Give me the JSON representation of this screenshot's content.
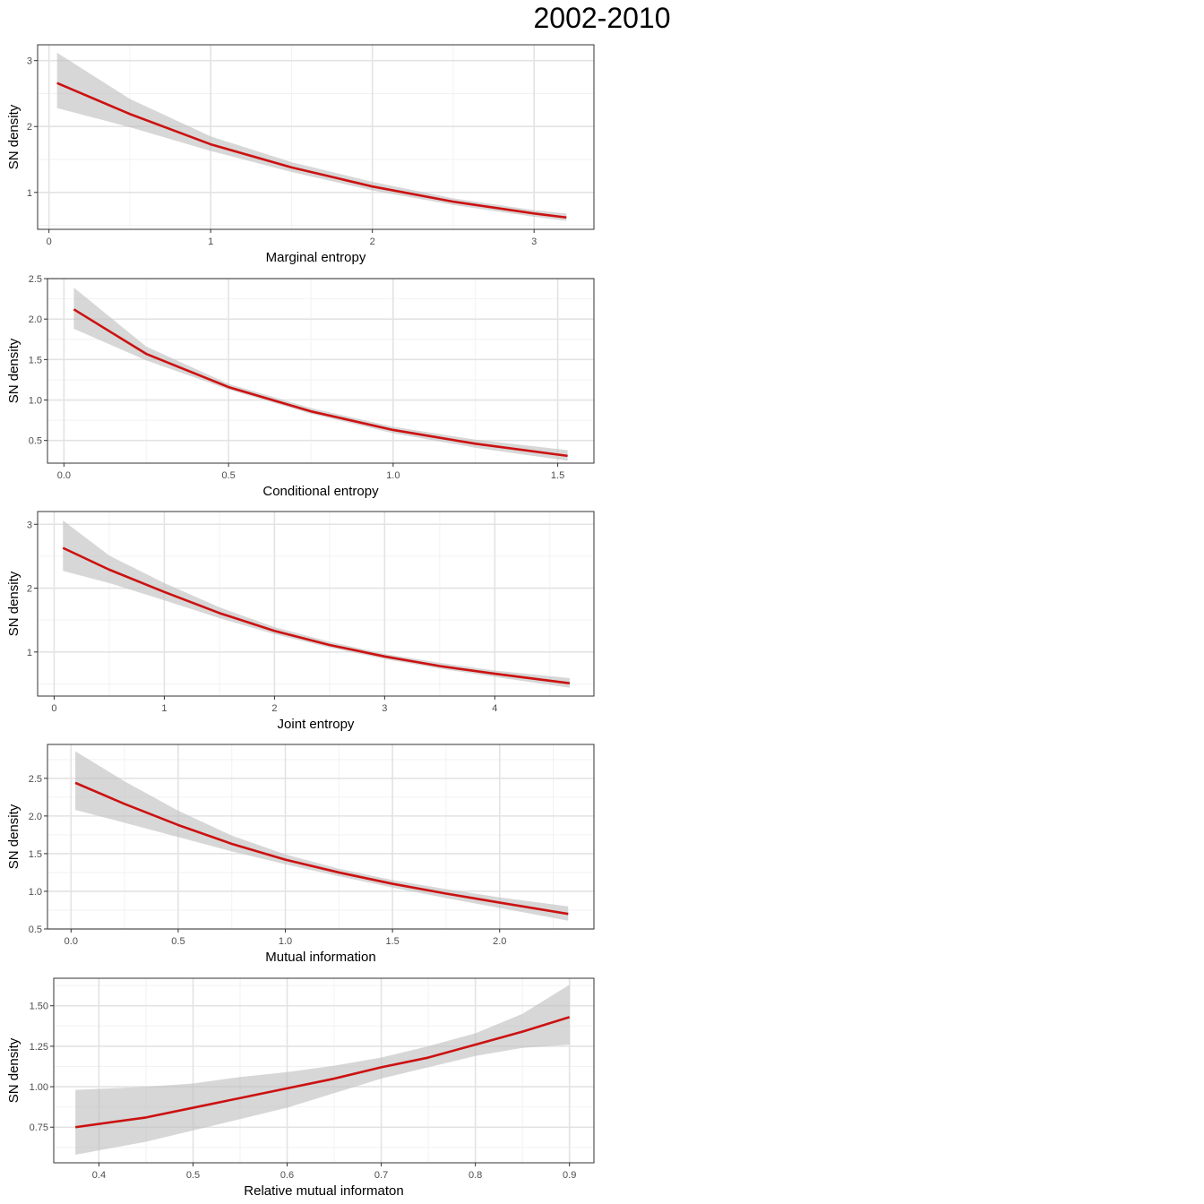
{
  "title": "2002-2010",
  "style": {
    "line_color": "#cc1111",
    "band_color": "#bebebe",
    "panel_border": "#333333",
    "grid_major": "#e3e3e3",
    "grid_minor": "#f2f2f2"
  },
  "chart_data": [
    {
      "type": "line",
      "xlabel": "Marginal entropy",
      "ylabel": "SN density",
      "xlim": [
        -0.07,
        3.37
      ],
      "ylim": [
        0.44,
        3.24
      ],
      "xticks": [
        0,
        1,
        2,
        3
      ],
      "xtick_labels": [
        "0",
        "1",
        "2",
        "3"
      ],
      "xminor": [
        0.5,
        1.5,
        2.5
      ],
      "yticks": [
        1,
        2,
        3
      ],
      "ytick_labels": [
        "1",
        "2",
        "3"
      ],
      "yminor": [
        0.5,
        1.5,
        2.5
      ],
      "series": [
        {
          "x": [
            0.05,
            0.5,
            1.0,
            1.5,
            2.0,
            2.5,
            3.0,
            3.2
          ],
          "y": [
            2.66,
            2.19,
            1.73,
            1.38,
            1.09,
            0.86,
            0.68,
            0.62
          ],
          "lower": [
            2.28,
            1.99,
            1.63,
            1.31,
            1.03,
            0.81,
            0.63,
            0.57
          ],
          "upper": [
            3.12,
            2.42,
            1.85,
            1.46,
            1.16,
            0.91,
            0.73,
            0.68
          ]
        }
      ]
    },
    {
      "type": "line",
      "xlabel": "Conditional entropy",
      "ylabel": "SN density",
      "xlim": [
        -0.05,
        1.61
      ],
      "ylim": [
        0.22,
        2.5
      ],
      "xticks": [
        0.0,
        0.5,
        1.0,
        1.5
      ],
      "xtick_labels": [
        "0.0",
        "0.5",
        "1.0",
        "1.5"
      ],
      "xminor": [
        0.25,
        0.75,
        1.25
      ],
      "yticks": [
        0.5,
        1.0,
        1.5,
        2.0,
        2.5
      ],
      "ytick_labels": [
        "0.5",
        "1.0",
        "1.5",
        "2.0",
        "2.5"
      ],
      "yminor": [
        0.75,
        1.25,
        1.75,
        2.25
      ],
      "series": [
        {
          "x": [
            0.03,
            0.25,
            0.5,
            0.75,
            1.0,
            1.25,
            1.53
          ],
          "y": [
            2.12,
            1.57,
            1.16,
            0.86,
            0.63,
            0.46,
            0.31
          ],
          "lower": [
            1.88,
            1.49,
            1.13,
            0.83,
            0.59,
            0.41,
            0.25
          ],
          "upper": [
            2.39,
            1.66,
            1.2,
            0.9,
            0.67,
            0.51,
            0.38
          ]
        }
      ]
    },
    {
      "type": "line",
      "xlabel": "Joint entropy",
      "ylabel": "SN density",
      "xlim": [
        -0.15,
        4.9
      ],
      "ylim": [
        0.31,
        3.2
      ],
      "xticks": [
        0,
        1,
        2,
        3,
        4
      ],
      "xtick_labels": [
        "0",
        "1",
        "2",
        "3",
        "4"
      ],
      "xminor": [
        0.5,
        1.5,
        2.5,
        3.5,
        4.5
      ],
      "yticks": [
        1,
        2,
        3
      ],
      "ytick_labels": [
        "1",
        "2",
        "3"
      ],
      "yminor": [
        0.5,
        1.5,
        2.5
      ],
      "series": [
        {
          "x": [
            0.08,
            0.5,
            1.0,
            1.5,
            2.0,
            2.5,
            3.0,
            3.5,
            4.0,
            4.68
          ],
          "y": [
            2.63,
            2.29,
            1.94,
            1.61,
            1.33,
            1.11,
            0.93,
            0.78,
            0.66,
            0.51
          ],
          "lower": [
            2.27,
            2.08,
            1.81,
            1.53,
            1.28,
            1.07,
            0.89,
            0.74,
            0.61,
            0.44
          ],
          "upper": [
            3.06,
            2.51,
            2.08,
            1.7,
            1.39,
            1.16,
            0.97,
            0.83,
            0.71,
            0.59
          ]
        }
      ]
    },
    {
      "type": "line",
      "xlabel": "Mutual information",
      "ylabel": "SN density",
      "xlim": [
        -0.11,
        2.44
      ],
      "ylim": [
        0.5,
        2.95
      ],
      "xticks": [
        0.0,
        0.5,
        1.0,
        1.5,
        2.0
      ],
      "xtick_labels": [
        "0.0",
        "0.5",
        "1.0",
        "1.5",
        "2.0"
      ],
      "xminor": [
        0.25,
        0.75,
        1.25,
        1.75,
        2.25
      ],
      "yticks": [
        0.5,
        1.0,
        1.5,
        2.0,
        2.5
      ],
      "ytick_labels": [
        "0.5",
        "1.0",
        "1.5",
        "2.0",
        "2.5"
      ],
      "yminor": [
        0.75,
        1.25,
        1.75,
        2.25,
        2.75
      ],
      "series": [
        {
          "x": [
            0.02,
            0.25,
            0.5,
            0.75,
            1.0,
            1.25,
            1.5,
            1.75,
            2.0,
            2.32
          ],
          "y": [
            2.44,
            2.16,
            1.88,
            1.63,
            1.42,
            1.25,
            1.1,
            0.97,
            0.85,
            0.7
          ],
          "lower": [
            2.08,
            1.91,
            1.72,
            1.53,
            1.36,
            1.2,
            1.05,
            0.91,
            0.78,
            0.61
          ],
          "upper": [
            2.86,
            2.46,
            2.07,
            1.74,
            1.49,
            1.3,
            1.15,
            1.03,
            0.92,
            0.8
          ]
        }
      ]
    },
    {
      "type": "line",
      "xlabel": "Relative mutual informaton",
      "ylabel": "SN density",
      "xlim": [
        0.352,
        0.926
      ],
      "ylim": [
        0.53,
        1.67
      ],
      "xticks": [
        0.4,
        0.5,
        0.6,
        0.7,
        0.8,
        0.9
      ],
      "xtick_labels": [
        "0.4",
        "0.5",
        "0.6",
        "0.7",
        "0.8",
        "0.9"
      ],
      "xminor": [
        0.45,
        0.55,
        0.65,
        0.75,
        0.85
      ],
      "yticks": [
        0.75,
        1.0,
        1.25,
        1.5
      ],
      "ytick_labels": [
        "0.75",
        "1.00",
        "1.25",
        "1.50"
      ],
      "yminor": [
        0.625,
        0.875,
        1.125,
        1.375,
        1.625
      ],
      "series": [
        {
          "x": [
            0.375,
            0.45,
            0.5,
            0.55,
            0.6,
            0.65,
            0.7,
            0.75,
            0.8,
            0.85,
            0.9
          ],
          "y": [
            0.75,
            0.81,
            0.87,
            0.93,
            0.99,
            1.05,
            1.12,
            1.18,
            1.26,
            1.34,
            1.43
          ],
          "lower": [
            0.58,
            0.66,
            0.73,
            0.8,
            0.87,
            0.96,
            1.05,
            1.12,
            1.19,
            1.24,
            1.26
          ],
          "upper": [
            0.98,
            1.0,
            1.02,
            1.06,
            1.09,
            1.13,
            1.18,
            1.25,
            1.33,
            1.45,
            1.63
          ]
        }
      ]
    }
  ]
}
